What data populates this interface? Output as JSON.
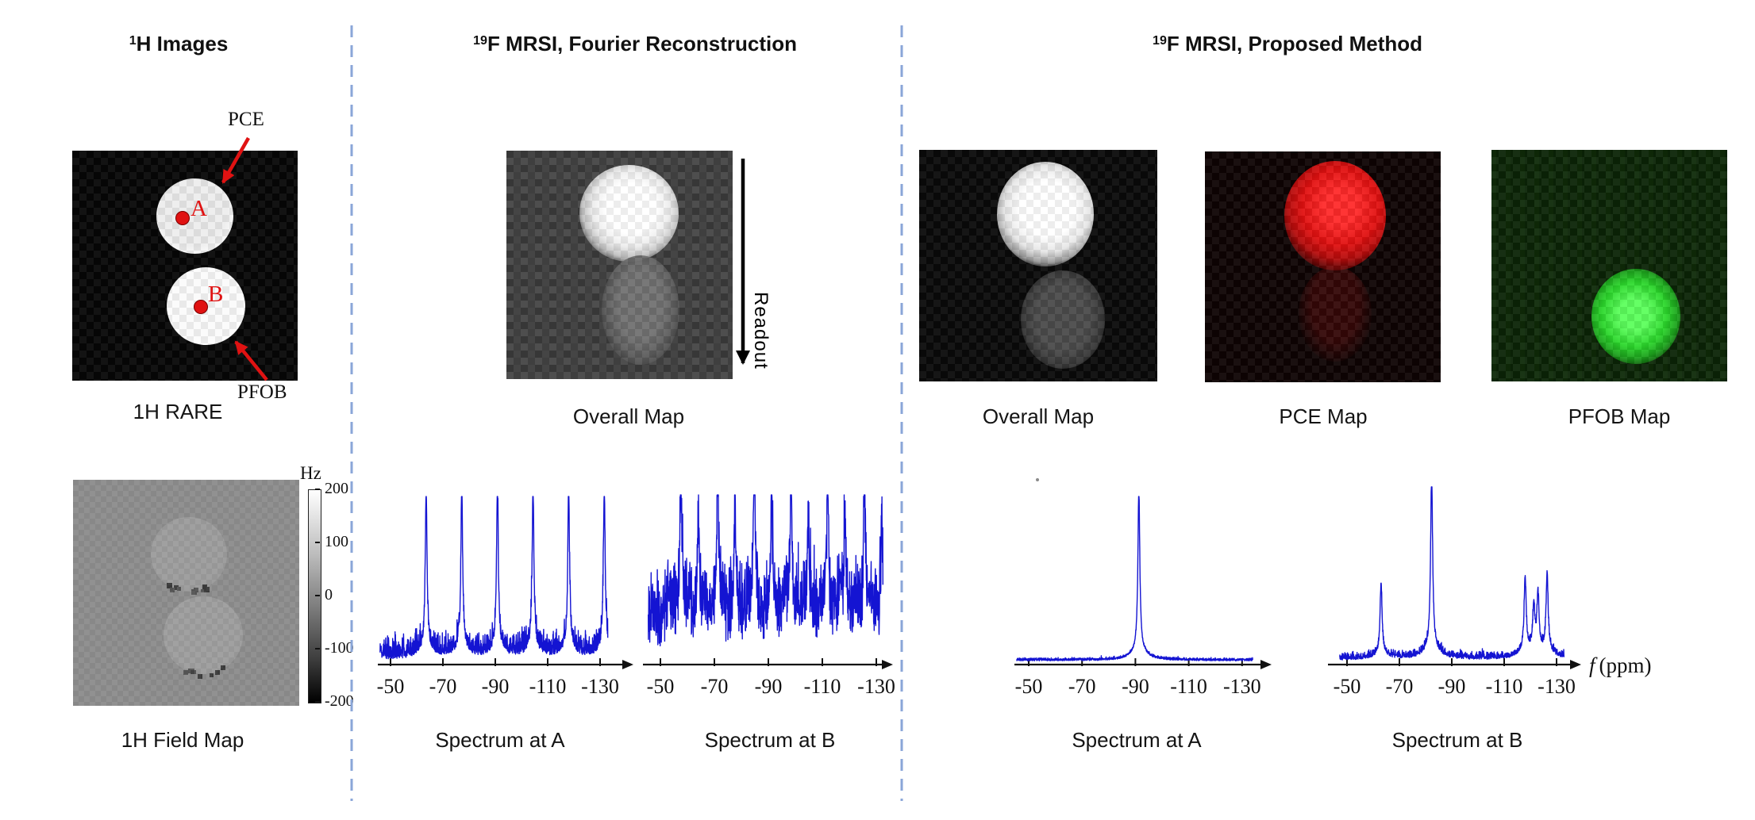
{
  "columns": {
    "col1": {
      "title_sup": "1",
      "title_text": "H Images"
    },
    "col2": {
      "title_sup": "19",
      "title_text": "F MRSI, Fourier Reconstruction"
    },
    "col3": {
      "title_sup": "19",
      "title_text": "F MRSI, Proposed Method"
    }
  },
  "left": {
    "rare": {
      "caption": "1H RARE",
      "label_pce": "PCE",
      "label_pfob": "PFOB",
      "point_a": "A",
      "point_b": "B"
    },
    "field_map": {
      "caption": "1H Field Map",
      "colorbar_unit": "Hz",
      "colorbar_ticks": [
        "200",
        "100",
        "0",
        "-100",
        "-200"
      ]
    }
  },
  "middle": {
    "overall_map_caption": "Overall Map",
    "readout_label": "Readout",
    "spectrum_a_caption": "Spectrum at A",
    "spectrum_b_caption": "Spectrum at B"
  },
  "right": {
    "overall_map_caption": "Overall Map",
    "pce_map_caption": "PCE Map",
    "pfob_map_caption": "PFOB Map",
    "spectrum_a_caption": "Spectrum at A",
    "spectrum_b_caption": "Spectrum at B",
    "freq_axis_label_f": "f",
    "freq_axis_label_unit": "(ppm)"
  },
  "colors": {
    "spectrum_line": "#1414d2",
    "separator_dashed": "#8aa6d8",
    "annotation_red": "#e01212",
    "axis": "#111111",
    "pce_blob": "#e01010",
    "pfob_blob": "#2bd62b"
  },
  "chart_data": [
    {
      "id": "fourier_spectrum_A",
      "type": "line",
      "title": "Spectrum at A",
      "xlabel": "f (ppm)",
      "legend": "none",
      "grid": false,
      "ticks_ppm": [
        -50,
        -70,
        -90,
        -110,
        -130
      ],
      "tick_labels": [
        "-50",
        "-70",
        "-90",
        "-110",
        "-130"
      ],
      "x_range": [
        -46,
        -133
      ],
      "peak_width_ppm": 0.38,
      "clip": 0.99,
      "baseline": 0.02,
      "noise_level": 0.16,
      "noise_pow": 2.2,
      "wave": 0,
      "peaks": [
        {
          "ppm": -63.6,
          "h": 0.95
        },
        {
          "ppm": -77.2,
          "h": 0.96
        },
        {
          "ppm": -90.8,
          "h": 0.95
        },
        {
          "ppm": -104.4,
          "h": 0.95
        },
        {
          "ppm": -118.0,
          "h": 0.96
        },
        {
          "ppm": -131.6,
          "h": 0.95
        }
      ],
      "note": "six evenly spaced aliased peaks over a low noise floor"
    },
    {
      "id": "fourier_spectrum_B",
      "type": "line",
      "title": "Spectrum at B",
      "xlabel": "f (ppm)",
      "legend": "none",
      "grid": false,
      "ticks_ppm": [
        -50,
        -70,
        -90,
        -110,
        -130
      ],
      "tick_labels": [
        "-50",
        "-70",
        "-90",
        "-110",
        "-130"
      ],
      "x_range": [
        -45.5,
        -132.5
      ],
      "peak_width_ppm": 0.3,
      "clip": 0.99,
      "baseline": 0.05,
      "noise_level": 0.5,
      "noise_pow": 1.1,
      "wave": 0.05,
      "peaks": [
        {
          "ppm": -57.6,
          "h": 0.93
        },
        {
          "ppm": -71.2,
          "h": 0.93
        },
        {
          "ppm": -84.8,
          "h": 0.93
        },
        {
          "ppm": -98.4,
          "h": 0.93
        },
        {
          "ppm": -112.0,
          "h": 0.93
        },
        {
          "ppm": -125.6,
          "h": 0.93
        },
        {
          "ppm": -64.0,
          "h": 0.64
        },
        {
          "ppm": -77.6,
          "h": 0.64
        },
        {
          "ppm": -91.2,
          "h": 0.64
        },
        {
          "ppm": -104.8,
          "h": 0.64
        },
        {
          "ppm": -118.4,
          "h": 0.64
        },
        {
          "ppm": -132.0,
          "h": 0.64
        }
      ],
      "note": "dense high noise with two interleaved sets of aliased spikes"
    },
    {
      "id": "proposed_spectrum_A",
      "type": "line",
      "title": "Spectrum at A",
      "xlabel": "f (ppm)",
      "legend": "none",
      "grid": false,
      "ticks_ppm": [
        -50,
        -70,
        -90,
        -110,
        -130
      ],
      "tick_labels": [
        "-50",
        "-70",
        "-90",
        "-110",
        "-130"
      ],
      "x_range": [
        -45.5,
        -134
      ],
      "peak_width_ppm": 0.42,
      "clip": 0.99,
      "baseline": 0.012,
      "noise_level": 0.02,
      "noise_pow": 1.5,
      "wave": 0,
      "peaks": [
        {
          "ppm": -91.3,
          "h": 0.97
        }
      ],
      "note": "single sharp PCE resonance near -91 ppm on a flat baseline"
    },
    {
      "id": "proposed_spectrum_B",
      "type": "line",
      "title": "Spectrum at B",
      "xlabel": "f (ppm)",
      "legend": "none",
      "grid": false,
      "ticks_ppm": [
        -50,
        -70,
        -90,
        -110,
        -130
      ],
      "tick_labels": [
        "-50",
        "-70",
        "-90",
        "-110",
        "-130"
      ],
      "x_range": [
        -47.2,
        -133
      ],
      "peak_width_ppm": 0.45,
      "clip": 1.0,
      "baseline": 0.015,
      "noise_level": 0.05,
      "noise_pow": 1.8,
      "wave": 0,
      "peaks": [
        {
          "ppm": -63.0,
          "h": 0.4
        },
        {
          "ppm": -82.3,
          "h": 1.0
        },
        {
          "ppm": -118.0,
          "h": 0.42
        },
        {
          "ppm": -121.3,
          "h": 0.25
        },
        {
          "ppm": -122.9,
          "h": 0.31
        },
        {
          "ppm": -126.4,
          "h": 0.44
        }
      ],
      "note": "PFOB multiplet: peaks near -63, -82 and a cluster at -118 to -127 ppm"
    }
  ]
}
